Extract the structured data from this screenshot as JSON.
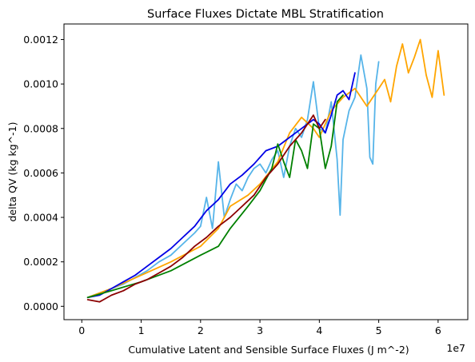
{
  "chart_data": {
    "type": "line",
    "title": "Surface Fluxes Dictate MBL Stratification",
    "xlabel": "Cumulative Latent and Sensible Surface Fluxes (J m^-2)",
    "ylabel": "delta QV (kg kg^-1)",
    "x_offset_label": "1e7",
    "x_scale": 10000000,
    "xlim": [
      -0.3,
      6.5
    ],
    "ylim": [
      -6e-05,
      0.00127
    ],
    "x_ticks": [
      0,
      1,
      2,
      3,
      4,
      5,
      6
    ],
    "x_tick_labels": [
      "0",
      "1",
      "2",
      "3",
      "4",
      "5",
      "6"
    ],
    "y_ticks": [
      0,
      0.0002,
      0.0004,
      0.0006,
      0.0008,
      0.001,
      0.0012
    ],
    "y_tick_labels": [
      "0.0000",
      "0.0002",
      "0.0004",
      "0.0006",
      "0.0008",
      "0.0010",
      "0.0012"
    ],
    "grid": false,
    "legend": "none",
    "series": [
      {
        "color": "#56b4e9",
        "x": [
          0.1,
          0.3,
          0.5,
          0.7,
          0.9,
          1.1,
          1.3,
          1.5,
          1.7,
          1.9,
          2.0,
          2.1,
          2.2,
          2.3,
          2.4,
          2.5,
          2.6,
          2.7,
          2.8,
          2.9,
          3.0,
          3.1,
          3.2,
          3.3,
          3.4,
          3.5,
          3.6,
          3.7,
          3.8,
          3.9,
          4.0,
          4.1,
          4.2,
          4.3,
          4.35,
          4.4,
          4.5,
          4.6,
          4.7,
          4.8,
          4.85,
          4.9,
          4.95,
          5.0
        ],
        "y": [
          4e-05,
          6e-05,
          8e-05,
          0.0001,
          0.00013,
          0.00016,
          0.0002,
          0.00023,
          0.00028,
          0.00033,
          0.00036,
          0.00049,
          0.00035,
          0.00065,
          0.0004,
          0.00048,
          0.00055,
          0.00052,
          0.00058,
          0.00062,
          0.00064,
          0.0006,
          0.00066,
          0.0007,
          0.00058,
          0.00072,
          0.0008,
          0.00076,
          0.00084,
          0.00101,
          0.0008,
          0.00078,
          0.00092,
          0.00066,
          0.00041,
          0.00075,
          0.00088,
          0.00094,
          0.00113,
          0.00098,
          0.00067,
          0.00064,
          0.001,
          0.0011
        ]
      },
      {
        "color": "#ffa500",
        "x": [
          0.1,
          0.5,
          1.0,
          1.5,
          2.0,
          2.3,
          2.5,
          2.8,
          3.0,
          3.3,
          3.5,
          3.7,
          3.9,
          4.0,
          4.2,
          4.4,
          4.6,
          4.8,
          5.0,
          5.1,
          5.2,
          5.3,
          5.4,
          5.5,
          5.6,
          5.7,
          5.8,
          5.9,
          6.0,
          6.1
        ],
        "y": [
          4e-05,
          8e-05,
          0.00014,
          0.0002,
          0.00027,
          0.00035,
          0.00045,
          0.0005,
          0.00055,
          0.00065,
          0.00078,
          0.00085,
          0.0008,
          0.00076,
          0.00088,
          0.00094,
          0.00098,
          0.0009,
          0.00098,
          0.00102,
          0.00092,
          0.00108,
          0.00118,
          0.00105,
          0.00112,
          0.0012,
          0.00104,
          0.00094,
          0.00115,
          0.00095
        ]
      },
      {
        "color": "#0000e6",
        "x": [
          0.1,
          0.3,
          0.5,
          0.7,
          0.9,
          1.1,
          1.3,
          1.5,
          1.7,
          1.9,
          2.1,
          2.3,
          2.5,
          2.7,
          2.9,
          3.1,
          3.3,
          3.5,
          3.7,
          3.9,
          4.0,
          4.1,
          4.2,
          4.3,
          4.4,
          4.5,
          4.6
        ],
        "y": [
          4e-05,
          5e-05,
          8e-05,
          0.00011,
          0.00014,
          0.00018,
          0.00022,
          0.00026,
          0.00031,
          0.00036,
          0.00043,
          0.00048,
          0.00055,
          0.00059,
          0.00064,
          0.0007,
          0.00072,
          0.00076,
          0.0008,
          0.00084,
          0.00082,
          0.00078,
          0.00086,
          0.00095,
          0.00097,
          0.00093,
          0.00105
        ]
      },
      {
        "color": "#008000",
        "x": [
          0.1,
          0.5,
          1.0,
          1.5,
          2.0,
          2.3,
          2.5,
          2.8,
          3.0,
          3.2,
          3.3,
          3.4,
          3.5,
          3.6,
          3.7,
          3.8,
          3.9,
          4.0,
          4.1,
          4.2,
          4.3,
          4.4
        ],
        "y": [
          4e-05,
          7e-05,
          0.00011,
          0.00016,
          0.00023,
          0.00027,
          0.00035,
          0.00045,
          0.00052,
          0.00062,
          0.00073,
          0.00065,
          0.00058,
          0.00075,
          0.0007,
          0.00062,
          0.00082,
          0.0008,
          0.00062,
          0.00072,
          0.00092,
          0.00095
        ]
      },
      {
        "color": "#8b0000",
        "x": [
          0.1,
          0.3,
          0.5,
          0.7,
          0.9,
          1.1,
          1.3,
          1.5,
          1.7,
          1.9,
          2.1,
          2.3,
          2.5,
          2.7,
          2.9,
          3.1,
          3.3,
          3.5,
          3.7,
          3.9,
          4.0,
          4.1
        ],
        "y": [
          3e-05,
          2e-05,
          5e-05,
          7e-05,
          0.0001,
          0.00012,
          0.00015,
          0.00018,
          0.00022,
          0.00027,
          0.00031,
          0.00036,
          0.0004,
          0.00045,
          0.0005,
          0.00058,
          0.00064,
          0.00072,
          0.00078,
          0.00086,
          0.0008,
          0.00084
        ]
      }
    ]
  }
}
